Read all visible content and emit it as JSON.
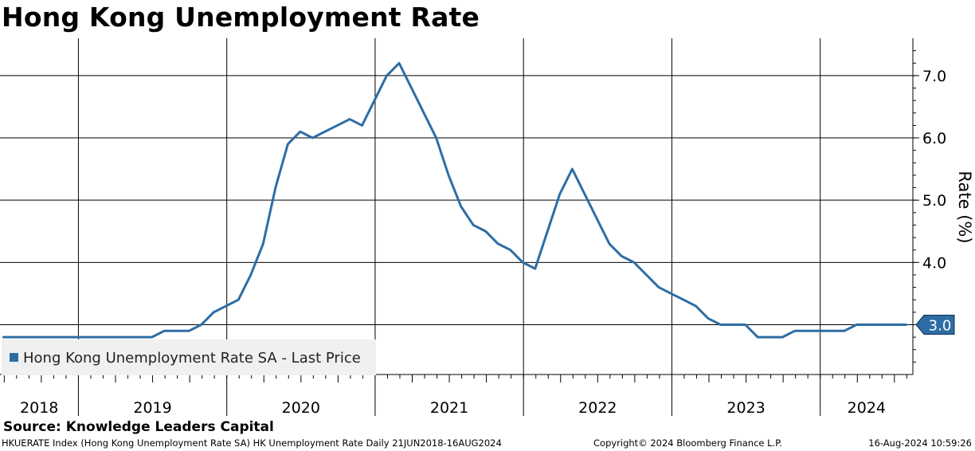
{
  "chart_data": {
    "type": "line",
    "title": "Hong Kong Unemployment Rate",
    "ylabel": "Rate (%)",
    "ylim": [
      2.2,
      7.6
    ],
    "yticks": [
      "4.0",
      "5.0",
      "6.0",
      "7.0"
    ],
    "last_value_label": "3.0",
    "last_value": 3.0,
    "x_year_labels": [
      "2018",
      "2019",
      "2020",
      "2021",
      "2022",
      "2023",
      "2024"
    ],
    "x_range": [
      "2018-06-21",
      "2024-08-16"
    ],
    "grid": true,
    "legend_position": "bottom-left",
    "series": [
      {
        "name": "Hong Kong Unemployment Rate SA - Last Price",
        "color": "#2e6da4",
        "points": [
          [
            "2018-06",
            2.8
          ],
          [
            "2018-07",
            2.8
          ],
          [
            "2018-08",
            2.8
          ],
          [
            "2018-09",
            2.8
          ],
          [
            "2018-10",
            2.8
          ],
          [
            "2018-11",
            2.8
          ],
          [
            "2018-12",
            2.8
          ],
          [
            "2019-01",
            2.8
          ],
          [
            "2019-02",
            2.8
          ],
          [
            "2019-03",
            2.8
          ],
          [
            "2019-04",
            2.8
          ],
          [
            "2019-05",
            2.8
          ],
          [
            "2019-06",
            2.8
          ],
          [
            "2019-07",
            2.9
          ],
          [
            "2019-08",
            2.9
          ],
          [
            "2019-09",
            2.9
          ],
          [
            "2019-10",
            3.0
          ],
          [
            "2019-11",
            3.2
          ],
          [
            "2019-12",
            3.3
          ],
          [
            "2020-01",
            3.4
          ],
          [
            "2020-02",
            3.8
          ],
          [
            "2020-03",
            4.3
          ],
          [
            "2020-04",
            5.2
          ],
          [
            "2020-05",
            5.9
          ],
          [
            "2020-06",
            6.1
          ],
          [
            "2020-07",
            6.0
          ],
          [
            "2020-08",
            6.1
          ],
          [
            "2020-09",
            6.2
          ],
          [
            "2020-10",
            6.3
          ],
          [
            "2020-11",
            6.2
          ],
          [
            "2020-12",
            6.6
          ],
          [
            "2021-01",
            7.0
          ],
          [
            "2021-02",
            7.2
          ],
          [
            "2021-03",
            6.8
          ],
          [
            "2021-04",
            6.4
          ],
          [
            "2021-05",
            6.0
          ],
          [
            "2021-06",
            5.4
          ],
          [
            "2021-07",
            4.9
          ],
          [
            "2021-08",
            4.6
          ],
          [
            "2021-09",
            4.5
          ],
          [
            "2021-10",
            4.3
          ],
          [
            "2021-11",
            4.2
          ],
          [
            "2021-12",
            4.0
          ],
          [
            "2022-01",
            3.9
          ],
          [
            "2022-02",
            4.5
          ],
          [
            "2022-03",
            5.1
          ],
          [
            "2022-04",
            5.5
          ],
          [
            "2022-05",
            5.1
          ],
          [
            "2022-06",
            4.7
          ],
          [
            "2022-07",
            4.3
          ],
          [
            "2022-08",
            4.1
          ],
          [
            "2022-09",
            4.0
          ],
          [
            "2022-10",
            3.8
          ],
          [
            "2022-11",
            3.6
          ],
          [
            "2022-12",
            3.5
          ],
          [
            "2023-01",
            3.4
          ],
          [
            "2023-02",
            3.3
          ],
          [
            "2023-03",
            3.1
          ],
          [
            "2023-04",
            3.0
          ],
          [
            "2023-05",
            3.0
          ],
          [
            "2023-06",
            3.0
          ],
          [
            "2023-07",
            2.8
          ],
          [
            "2023-08",
            2.8
          ],
          [
            "2023-09",
            2.8
          ],
          [
            "2023-10",
            2.9
          ],
          [
            "2023-11",
            2.9
          ],
          [
            "2023-12",
            2.9
          ],
          [
            "2024-01",
            2.9
          ],
          [
            "2024-02",
            2.9
          ],
          [
            "2024-03",
            3.0
          ],
          [
            "2024-04",
            3.0
          ],
          [
            "2024-05",
            3.0
          ],
          [
            "2024-06",
            3.0
          ],
          [
            "2024-07",
            3.0
          ]
        ]
      }
    ]
  },
  "source": "Source: Knowledge Leaders Capital",
  "footer": {
    "left": "HKUERATE Index (Hong Kong Unemployment Rate SA) HK Unemployment Rate  Daily 21JUN2018-16AUG2024",
    "center": "Copyright© 2024 Bloomberg Finance L.P.",
    "right": "16-Aug-2024 10:59:26"
  }
}
